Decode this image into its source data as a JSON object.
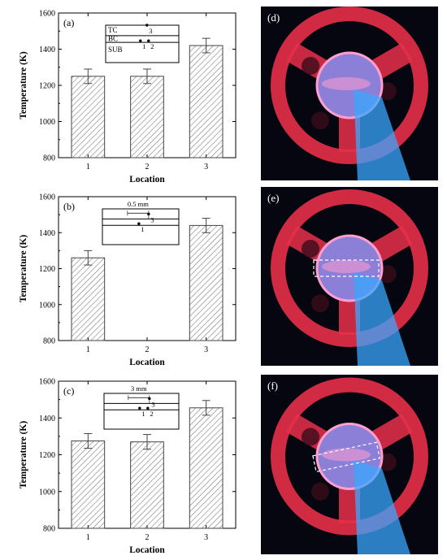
{
  "charts": [
    {
      "panel_label": "(a)",
      "chart_data": {
        "type": "bar",
        "categories": [
          "1",
          "2",
          "3"
        ],
        "values": [
          1250,
          1250,
          1420
        ],
        "errors": [
          40,
          40,
          40
        ],
        "xlabel": "Location",
        "ylabel": "Temperature (K)",
        "ylim": [
          800,
          1600
        ],
        "yticks": [
          800,
          1000,
          1200,
          1400,
          1600
        ]
      },
      "inset": {
        "layers": [
          "TC",
          "BC",
          "SUB"
        ],
        "points": [
          "1",
          "2",
          "3"
        ],
        "dimension": ""
      }
    },
    {
      "panel_label": "(b)",
      "chart_data": {
        "type": "bar",
        "categories": [
          "1",
          "2",
          "3"
        ],
        "values": [
          1260,
          null,
          1440
        ],
        "errors": [
          40,
          null,
          40
        ],
        "xlabel": "Location",
        "ylabel": "Temperature (K)",
        "ylim": [
          800,
          1600
        ],
        "yticks": [
          800,
          1000,
          1200,
          1400,
          1600
        ]
      },
      "inset": {
        "layers": [
          "",
          "",
          ""
        ],
        "points": [
          "1",
          "3"
        ],
        "dimension": "0.5 mm"
      }
    },
    {
      "panel_label": "(c)",
      "chart_data": {
        "type": "bar",
        "categories": [
          "1",
          "2",
          "3"
        ],
        "values": [
          1275,
          1270,
          1455
        ],
        "errors": [
          40,
          40,
          40
        ],
        "xlabel": "Location",
        "ylabel": "Temperature (K)",
        "ylim": [
          800,
          1600
        ],
        "yticks": [
          800,
          1000,
          1200,
          1400,
          1600
        ]
      },
      "inset": {
        "layers": [
          "",
          "",
          ""
        ],
        "points": [
          "1",
          "2",
          "3"
        ],
        "dimension": "3 mm"
      }
    }
  ],
  "photos": [
    {
      "label": "(d)",
      "highlight": false
    },
    {
      "label": "(e)",
      "highlight": true
    },
    {
      "label": "(f)",
      "highlight": true
    }
  ],
  "colors": {
    "wheel": "#e8304a",
    "flame": "#3aa7ff",
    "glow": "#ff9fd0",
    "background": "#05060f"
  }
}
